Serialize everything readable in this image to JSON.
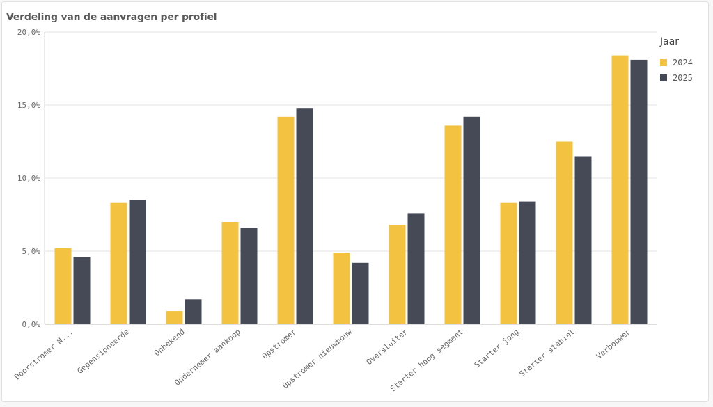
{
  "chart_data": {
    "type": "bar",
    "title": "Verdeling van de aanvragen per profiel",
    "xlabel": "",
    "ylabel": "",
    "ylim": [
      0,
      20
    ],
    "yticks": [
      "0,0%",
      "5,0%",
      "10,0%",
      "15,0%",
      "20,0%"
    ],
    "grid": true,
    "legend_title": "Jaar",
    "legend_position": "top-right",
    "categories": [
      "Doorstromer N...",
      "Gepensioneerde",
      "Onbekend",
      "Ondernemer aankoop",
      "Opstromer",
      "Opstromer nieuwbouw",
      "Oversluiter",
      "Starter hoog segment",
      "Starter jong",
      "Starter stabiel",
      "Verbouwer"
    ],
    "series": [
      {
        "name": "2024",
        "color": "#f2c240",
        "values": [
          5.2,
          8.3,
          0.9,
          7.0,
          14.2,
          4.9,
          6.8,
          13.6,
          8.3,
          12.5,
          18.4
        ]
      },
      {
        "name": "2025",
        "color": "#464a57",
        "values": [
          4.6,
          8.5,
          1.7,
          6.6,
          14.8,
          4.2,
          7.6,
          14.2,
          8.4,
          11.5,
          18.1
        ]
      }
    ]
  }
}
